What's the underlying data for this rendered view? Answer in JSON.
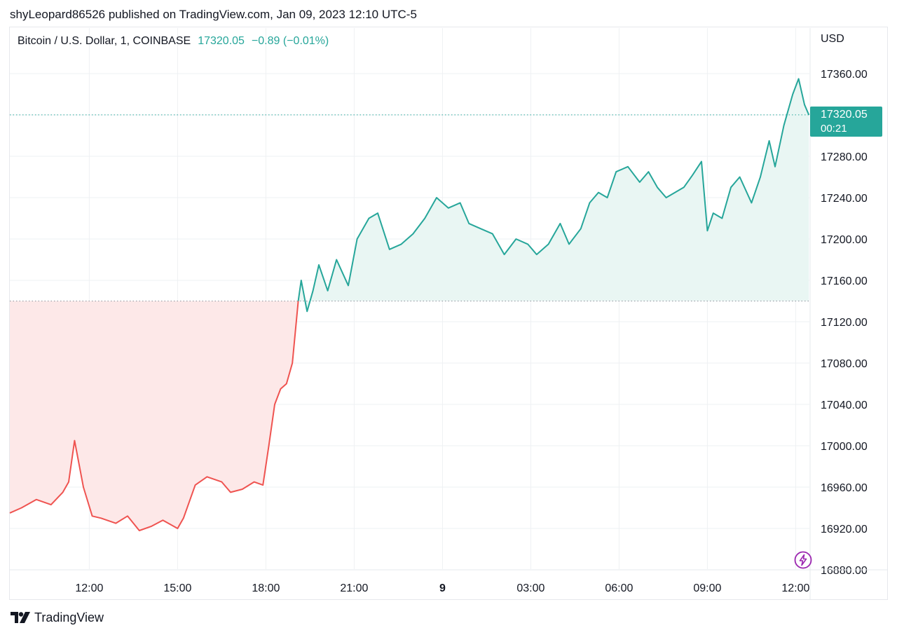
{
  "header": {
    "text": "shyLeopard86526 published on TradingView.com, Jan 09, 2023 12:10 UTC-5"
  },
  "legend": {
    "symbol": "Bitcoin / U.S. Dollar, 1, COINBASE",
    "last": "17320.05",
    "change": "−0.89 (−0.01%)"
  },
  "axis": {
    "currency": "USD"
  },
  "price_tag": {
    "price": "17320.05",
    "countdown": "00:21"
  },
  "footer": {
    "brand": "TradingView"
  },
  "icons": {
    "logo": "tradingview-logo-icon",
    "flash": "lightning-icon"
  },
  "colors": {
    "up": "#26a69a",
    "down": "#ef5350",
    "up_fill": "#e9f6f3",
    "down_fill": "#fde8e8",
    "grid": "#eef0f3"
  },
  "chart_data": {
    "type": "area",
    "baseline": 17140,
    "last_price": 17320.05,
    "ylim": [
      16880,
      17380
    ],
    "y_ticks": [
      "17360.00",
      "17320.00",
      "17280.00",
      "17240.00",
      "17200.00",
      "17160.00",
      "17120.00",
      "17080.00",
      "17040.00",
      "17000.00",
      "16960.00",
      "16920.00",
      "16880.00"
    ],
    "x_ticks": [
      "12:00",
      "15:00",
      "18:00",
      "21:00",
      "9",
      "03:00",
      "06:00",
      "09:00",
      "12:00"
    ],
    "x_tick_hours": [
      12,
      15,
      18,
      21,
      24,
      27,
      30,
      33,
      36
    ],
    "xlim_hours": [
      9.3,
      37.0
    ],
    "hours": [
      9.3,
      9.7,
      10.2,
      10.7,
      11.1,
      11.3,
      11.5,
      11.8,
      12.1,
      12.4,
      12.9,
      13.3,
      13.7,
      14.1,
      14.5,
      15.0,
      15.2,
      15.6,
      16.0,
      16.5,
      16.8,
      17.2,
      17.6,
      17.9,
      18.1,
      18.3,
      18.5,
      18.7,
      18.9,
      19.1,
      19.2,
      19.4,
      19.6,
      19.8,
      20.1,
      20.4,
      20.8,
      21.1,
      21.5,
      21.8,
      22.2,
      22.6,
      23.0,
      23.4,
      23.8,
      24.2,
      24.6,
      24.9,
      25.3,
      25.7,
      26.1,
      26.5,
      26.9,
      27.2,
      27.6,
      28.0,
      28.3,
      28.7,
      29.0,
      29.3,
      29.6,
      29.9,
      30.3,
      30.7,
      31.0,
      31.3,
      31.6,
      31.9,
      32.2,
      32.5,
      32.8,
      33.0,
      33.2,
      33.5,
      33.8,
      34.1,
      34.5,
      34.8,
      35.1,
      35.3,
      35.6,
      35.9,
      36.1,
      36.3,
      36.45
    ],
    "values": [
      16935,
      16940,
      16948,
      16943,
      16955,
      16965,
      17005,
      16960,
      16932,
      16930,
      16925,
      16932,
      16918,
      16922,
      16928,
      16920,
      16930,
      16962,
      16970,
      16965,
      16955,
      16958,
      16965,
      16962,
      17000,
      17040,
      17055,
      17060,
      17080,
      17140,
      17160,
      17130,
      17150,
      17175,
      17150,
      17180,
      17155,
      17200,
      17220,
      17225,
      17190,
      17195,
      17205,
      17220,
      17240,
      17230,
      17235,
      17215,
      17210,
      17205,
      17185,
      17200,
      17195,
      17185,
      17195,
      17215,
      17195,
      17210,
      17235,
      17245,
      17240,
      17265,
      17270,
      17255,
      17265,
      17250,
      17240,
      17245,
      17250,
      17262,
      17275,
      17208,
      17225,
      17220,
      17250,
      17260,
      17235,
      17260,
      17295,
      17270,
      17310,
      17340,
      17355,
      17330,
      17320
    ]
  }
}
